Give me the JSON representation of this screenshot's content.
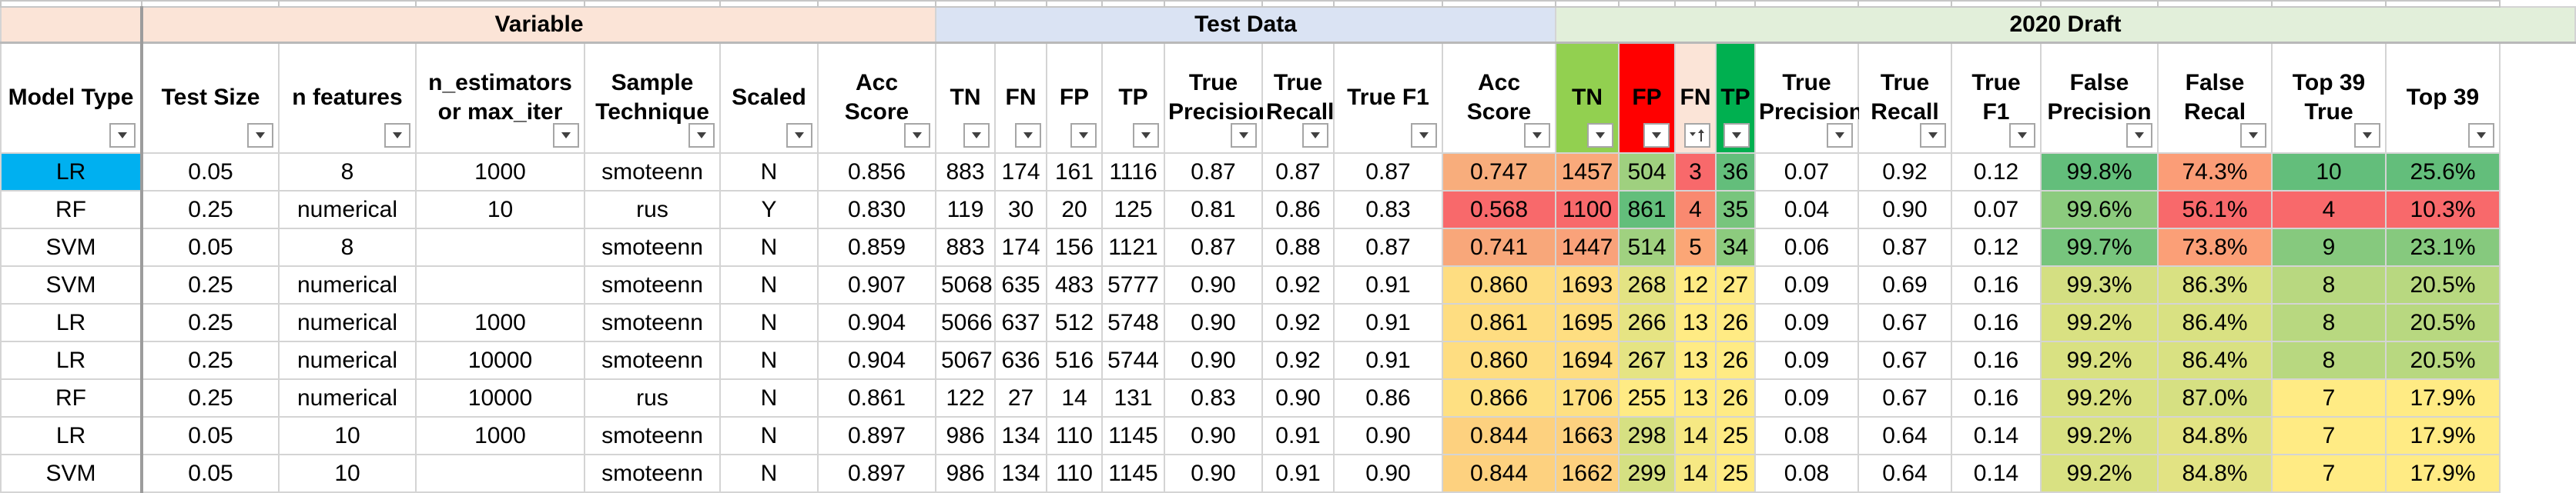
{
  "groups": [
    {
      "label": "",
      "span": 1,
      "cls": "g-blank"
    },
    {
      "label": "Variable",
      "span": 6,
      "cls": "g-variable"
    },
    {
      "label": "Test Data",
      "span": 8,
      "cls": "g-test"
    },
    {
      "label": "2020 Draft",
      "span": 14,
      "cls": "g-draft"
    }
  ],
  "columns": [
    {
      "label": "Model Type",
      "bg": "#ffffff"
    },
    {
      "label": "Test Size",
      "bg": "#ffffff"
    },
    {
      "label": "n features",
      "bg": "#ffffff"
    },
    {
      "label": "n_estimators or max_iter",
      "bg": "#ffffff"
    },
    {
      "label": "Sample Technique",
      "bg": "#ffffff"
    },
    {
      "label": "Scaled",
      "bg": "#ffffff"
    },
    {
      "label": "Acc Score",
      "bg": "#ffffff"
    },
    {
      "label": "TN",
      "bg": "#ffffff"
    },
    {
      "label": "FN",
      "bg": "#ffffff"
    },
    {
      "label": "FP",
      "bg": "#ffffff"
    },
    {
      "label": "TP",
      "bg": "#ffffff"
    },
    {
      "label": "True Precision",
      "bg": "#ffffff"
    },
    {
      "label": "True Recall",
      "bg": "#ffffff"
    },
    {
      "label": "True F1",
      "bg": "#ffffff"
    },
    {
      "label": "Acc Score",
      "bg": "#ffffff"
    },
    {
      "label": "TN",
      "bg": "#92d050"
    },
    {
      "label": "FP",
      "bg": "#ff0000"
    },
    {
      "label": "FN",
      "bg": "#fbe4d7",
      "sorted": true
    },
    {
      "label": "TP",
      "bg": "#00b050"
    },
    {
      "label": "True Precision",
      "bg": "#ffffff"
    },
    {
      "label": "True Recall",
      "bg": "#ffffff"
    },
    {
      "label": "True F1",
      "bg": "#ffffff"
    },
    {
      "label": "False Precision",
      "bg": "#ffffff"
    },
    {
      "label": "False Recal",
      "bg": "#ffffff"
    },
    {
      "label": "Top 39 True",
      "bg": "#ffffff"
    },
    {
      "label": "Top 39",
      "bg": "#ffffff"
    }
  ],
  "rows": [
    {
      "cells": [
        "LR",
        "0.05",
        "8",
        "1000",
        "smoteenn",
        "N",
        "0.856",
        "883",
        "174",
        "161",
        "1116",
        "0.87",
        "0.87",
        "0.87",
        "0.747",
        "1457",
        "504",
        "3",
        "36",
        "0.07",
        "0.92",
        "0.12",
        "99.8%",
        "74.3%",
        "10",
        "25.6%"
      ],
      "colors": {
        "14": "#f8ad7c",
        "15": "#f9a97b",
        "16": "#9fd07f",
        "17": "#f8696b",
        "18": "#63be7b",
        "22": "#63be7b",
        "23": "#fb9d77",
        "24": "#63be7b",
        "25": "#63be7b"
      }
    },
    {
      "cells": [
        "RF",
        "0.25",
        "numerical",
        "10",
        "rus",
        "Y",
        "0.830",
        "119",
        "30",
        "20",
        "125",
        "0.81",
        "0.86",
        "0.83",
        "0.568",
        "1100",
        "861",
        "4",
        "35",
        "0.04",
        "0.90",
        "0.07",
        "99.6%",
        "56.1%",
        "4",
        "10.3%"
      ],
      "colors": {
        "14": "#f8696b",
        "15": "#f8696b",
        "16": "#63be7b",
        "17": "#f98970",
        "18": "#78c57d",
        "22": "#8ccb7e",
        "23": "#f8696b",
        "24": "#f8696b",
        "25": "#f8696b"
      }
    },
    {
      "cells": [
        "SVM",
        "0.05",
        "8",
        "",
        "smoteenn",
        "N",
        "0.859",
        "883",
        "174",
        "156",
        "1121",
        "0.87",
        "0.88",
        "0.87",
        "0.741",
        "1447",
        "514",
        "5",
        "34",
        "0.06",
        "0.87",
        "0.12",
        "99.7%",
        "73.8%",
        "9",
        "23.1%"
      ],
      "colors": {
        "14": "#f8a77a",
        "15": "#f9a27a",
        "16": "#a0d180",
        "17": "#fba676",
        "18": "#8ccb7e",
        "22": "#77c57d",
        "23": "#fb9f77",
        "24": "#86c97e",
        "25": "#86c97e"
      }
    },
    {
      "cells": [
        "SVM",
        "0.25",
        "numerical",
        "",
        "smoteenn",
        "N",
        "0.907",
        "5068",
        "635",
        "483",
        "5777",
        "0.90",
        "0.92",
        "0.91",
        "0.860",
        "1693",
        "268",
        "12",
        "27",
        "0.09",
        "0.69",
        "0.16",
        "99.3%",
        "86.3%",
        "8",
        "20.5%"
      ],
      "colors": {
        "14": "#fedd81",
        "15": "#fedd81",
        "16": "#e3e383",
        "17": "#ffeb84",
        "18": "#ffeb84",
        "22": "#d4df82",
        "23": "#d9e182",
        "24": "#b8d880",
        "25": "#b8d880"
      }
    },
    {
      "cells": [
        "LR",
        "0.25",
        "numerical",
        "1000",
        "smoteenn",
        "N",
        "0.904",
        "5066",
        "637",
        "512",
        "5748",
        "0.90",
        "0.92",
        "0.91",
        "0.861",
        "1695",
        "266",
        "13",
        "26",
        "0.09",
        "0.67",
        "0.16",
        "99.2%",
        "86.4%",
        "8",
        "20.5%"
      ],
      "colors": {
        "14": "#fedd81",
        "15": "#fede81",
        "16": "#e6e483",
        "17": "#ffeb84",
        "18": "#ffeb84",
        "22": "#d9e182",
        "23": "#d9e182",
        "24": "#b8d880",
        "25": "#b8d880"
      }
    },
    {
      "cells": [
        "LR",
        "0.25",
        "numerical",
        "10000",
        "smoteenn",
        "N",
        "0.904",
        "5067",
        "636",
        "516",
        "5744",
        "0.90",
        "0.92",
        "0.91",
        "0.860",
        "1694",
        "267",
        "13",
        "26",
        "0.09",
        "0.67",
        "0.16",
        "99.2%",
        "86.4%",
        "8",
        "20.5%"
      ],
      "colors": {
        "14": "#fedd81",
        "15": "#fedd81",
        "16": "#e5e483",
        "17": "#ffeb84",
        "18": "#ffeb84",
        "22": "#d9e182",
        "23": "#d9e182",
        "24": "#b8d880",
        "25": "#b8d880"
      }
    },
    {
      "cells": [
        "RF",
        "0.25",
        "numerical",
        "10000",
        "rus",
        "N",
        "0.861",
        "122",
        "27",
        "14",
        "131",
        "0.83",
        "0.90",
        "0.86",
        "0.866",
        "1706",
        "255",
        "13",
        "26",
        "0.09",
        "0.67",
        "0.16",
        "99.2%",
        "87.0%",
        "7",
        "17.9%"
      ],
      "colors": {
        "14": "#fee082",
        "15": "#fee082",
        "16": "#ffeb84",
        "17": "#ffeb84",
        "18": "#ffeb84",
        "22": "#d9e182",
        "23": "#d6e082",
        "24": "#ffeb84",
        "25": "#ffeb84"
      }
    },
    {
      "cells": [
        "LR",
        "0.05",
        "10",
        "1000",
        "smoteenn",
        "N",
        "0.897",
        "986",
        "134",
        "110",
        "1145",
        "0.90",
        "0.91",
        "0.90",
        "0.844",
        "1663",
        "298",
        "14",
        "25",
        "0.08",
        "0.64",
        "0.14",
        "99.2%",
        "84.8%",
        "7",
        "17.9%"
      ],
      "colors": {
        "14": "#fdd17f",
        "15": "#fdd17f",
        "16": "#d6e082",
        "17": "#f6e883",
        "18": "#ffeb84",
        "22": "#d9e182",
        "23": "#e2e383",
        "24": "#ffeb84",
        "25": "#ffeb84"
      }
    },
    {
      "cells": [
        "SVM",
        "0.05",
        "10",
        "",
        "smoteenn",
        "N",
        "0.897",
        "986",
        "134",
        "110",
        "1145",
        "0.90",
        "0.91",
        "0.90",
        "0.844",
        "1662",
        "299",
        "14",
        "25",
        "0.08",
        "0.64",
        "0.14",
        "99.2%",
        "84.8%",
        "7",
        "17.9%"
      ],
      "colors": {
        "14": "#fdd17f",
        "15": "#fdd17f",
        "16": "#d5e082",
        "17": "#f6e883",
        "18": "#ffeb84",
        "22": "#d9e182",
        "23": "#e2e383",
        "24": "#ffeb84",
        "25": "#ffeb84"
      }
    }
  ],
  "selected_cell": {
    "row": 0,
    "col": 0
  }
}
